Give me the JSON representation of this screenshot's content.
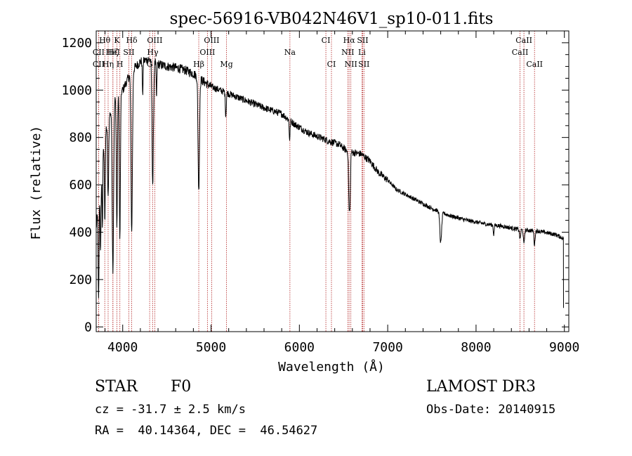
{
  "chart_data": {
    "type": "line",
    "title": "spec-56916-VB042N46V1_sp10-011.fits",
    "xlabel": "Wavelength (Å)",
    "ylabel": "Flux (relative)",
    "xlim": [
      3700,
      9050
    ],
    "ylim": [
      -20,
      1250
    ],
    "xticks": [
      4000,
      5000,
      6000,
      7000,
      8000,
      9000
    ],
    "yticks": [
      0,
      200,
      400,
      600,
      800,
      1000,
      1200
    ],
    "grid": false,
    "line_color": "#000000",
    "marker_color": "#b22222",
    "continuum": [
      [
        3700,
        420
      ],
      [
        3800,
        820
      ],
      [
        3900,
        960
      ],
      [
        4000,
        1000
      ],
      [
        4100,
        1080
      ],
      [
        4200,
        1120
      ],
      [
        4300,
        1130
      ],
      [
        4400,
        1110
      ],
      [
        4500,
        1100
      ],
      [
        4600,
        1095
      ],
      [
        4700,
        1085
      ],
      [
        4800,
        1070
      ],
      [
        4900,
        1040
      ],
      [
        5000,
        1015
      ],
      [
        5200,
        985
      ],
      [
        5400,
        955
      ],
      [
        5600,
        925
      ],
      [
        5800,
        900
      ],
      [
        5950,
        855
      ],
      [
        6100,
        820
      ],
      [
        6300,
        790
      ],
      [
        6450,
        770
      ],
      [
        6550,
        740
      ],
      [
        6700,
        730
      ],
      [
        6800,
        700
      ],
      [
        6900,
        650
      ],
      [
        7000,
        620
      ],
      [
        7100,
        580
      ],
      [
        7300,
        540
      ],
      [
        7500,
        500
      ],
      [
        7700,
        470
      ],
      [
        7900,
        450
      ],
      [
        8100,
        435
      ],
      [
        8300,
        425
      ],
      [
        8500,
        410
      ],
      [
        8700,
        405
      ],
      [
        8900,
        390
      ],
      [
        8980,
        375
      ]
    ],
    "absorption": [
      [
        3727,
        420,
        5
      ],
      [
        3750,
        300,
        5
      ],
      [
        3770,
        280,
        4
      ],
      [
        3798,
        360,
        5
      ],
      [
        3835,
        330,
        6
      ],
      [
        3889,
        700,
        8
      ],
      [
        3934,
        560,
        6
      ],
      [
        3968,
        620,
        6
      ],
      [
        4102,
        680,
        8
      ],
      [
        4226,
        150,
        4
      ],
      [
        4340,
        520,
        8
      ],
      [
        4383,
        150,
        4
      ],
      [
        4861,
        480,
        8
      ],
      [
        5167,
        100,
        5
      ],
      [
        5890,
        80,
        5
      ],
      [
        6563,
        230,
        6
      ],
      [
        6574,
        180,
        5
      ],
      [
        7600,
        130,
        10
      ],
      [
        8498,
        40,
        6
      ],
      [
        8542,
        60,
        6
      ],
      [
        8662,
        60,
        6
      ],
      [
        8200,
        40,
        5
      ]
    ],
    "noise_amplitude_blue": 40,
    "noise_amplitude_red": 15,
    "lines": [
      {
        "label": "CII",
        "wave": 3727,
        "row": 1
      },
      {
        "label": "CII",
        "wave": 3727,
        "row": 2
      },
      {
        "label": "Hθ",
        "wave": 3797,
        "row": 0
      },
      {
        "label": "Hη",
        "wave": 3835,
        "row": 2
      },
      {
        "label": "Hζ",
        "wave": 3889,
        "row": 1
      },
      {
        "label": "HeI",
        "wave": 3889,
        "row": 1
      },
      {
        "label": "K",
        "wave": 3934,
        "row": 0
      },
      {
        "label": "H",
        "wave": 3968,
        "row": 2
      },
      {
        "label": "SII",
        "wave": 4070,
        "row": 1
      },
      {
        "label": "Hδ",
        "wave": 4102,
        "row": 0
      },
      {
        "label": "G",
        "wave": 4305,
        "row": 2
      },
      {
        "label": "OIII",
        "wave": 4363,
        "row": 0
      },
      {
        "label": "Hγ",
        "wave": 4340,
        "row": 1
      },
      {
        "label": "Hβ",
        "wave": 4861,
        "row": 2
      },
      {
        "label": "OIII",
        "wave": 4959,
        "row": 1
      },
      {
        "label": "OIII",
        "wave": 5007,
        "row": 0
      },
      {
        "label": "Mg",
        "wave": 5175,
        "row": 2
      },
      {
        "label": "Na",
        "wave": 5893,
        "row": 1
      },
      {
        "label": "CI",
        "wave": 6300,
        "row": 0
      },
      {
        "label": "CI",
        "wave": 6363,
        "row": 2
      },
      {
        "label": "Hα",
        "wave": 6563,
        "row": 0
      },
      {
        "label": "NII",
        "wave": 6548,
        "row": 1
      },
      {
        "label": "NII",
        "wave": 6583,
        "row": 2
      },
      {
        "label": "SII",
        "wave": 6717,
        "row": 0
      },
      {
        "label": "Li",
        "wave": 6708,
        "row": 1
      },
      {
        "label": "SII",
        "wave": 6731,
        "row": 2
      },
      {
        "label": "CaII",
        "wave": 8542,
        "row": 0
      },
      {
        "label": "CaII",
        "wave": 8498,
        "row": 1
      },
      {
        "label": "CaII",
        "wave": 8662,
        "row": 2
      }
    ]
  },
  "info": {
    "object_class": "STAR",
    "subclass": "F0",
    "cz": "cz = -31.7 ± 2.5 km/s",
    "coords": "RA =  40.14364, DEC =  46.54627",
    "survey": "LAMOST DR3",
    "obs_date": "Obs-Date: 20140915"
  }
}
